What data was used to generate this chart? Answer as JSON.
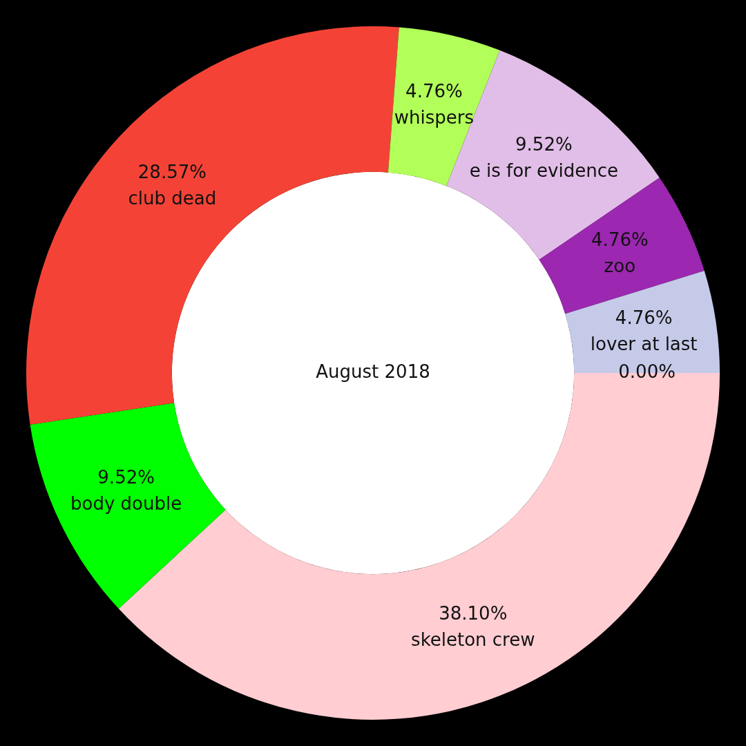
{
  "chart_data": {
    "type": "donut",
    "title": "August 2018",
    "categories": [
      "skeleton crew",
      "body double",
      "club dead",
      "whispers",
      "e is for evidence",
      "zoo",
      "lover at last",
      null
    ],
    "values": [
      38.1,
      9.52,
      28.57,
      4.76,
      9.52,
      4.76,
      4.76,
      0
    ],
    "value_labels": [
      "38.10%",
      "9.52%",
      "28.57%",
      "4.76%",
      "9.52%",
      "4.76%",
      "4.76%",
      "0.00%"
    ],
    "colors": [
      "#ffcdd2",
      "#00ff00",
      "#f44336",
      "#b2ff59",
      "#e1bee7",
      "#9c27b0",
      "#c5cae9",
      "#ffcdd2"
    ],
    "legend": false
  }
}
